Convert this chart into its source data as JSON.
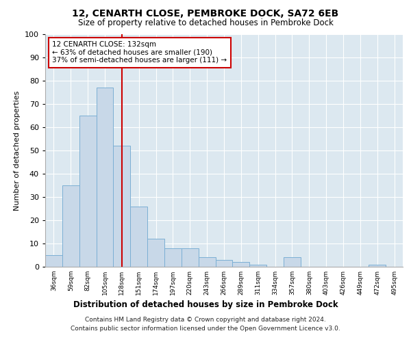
{
  "title1": "12, CENARTH CLOSE, PEMBROKE DOCK, SA72 6EB",
  "title2": "Size of property relative to detached houses in Pembroke Dock",
  "xlabel": "Distribution of detached houses by size in Pembroke Dock",
  "ylabel": "Number of detached properties",
  "footer1": "Contains HM Land Registry data © Crown copyright and database right 2024.",
  "footer2": "Contains public sector information licensed under the Open Government Licence v3.0.",
  "annotation_line1": "12 CENARTH CLOSE: 132sqm",
  "annotation_line2": "← 63% of detached houses are smaller (190)",
  "annotation_line3": "37% of semi-detached houses are larger (111) →",
  "bar_labels": [
    "36sqm",
    "59sqm",
    "82sqm",
    "105sqm",
    "128sqm",
    "151sqm",
    "174sqm",
    "197sqm",
    "220sqm",
    "243sqm",
    "266sqm",
    "289sqm",
    "311sqm",
    "334sqm",
    "357sqm",
    "380sqm",
    "403sqm",
    "426sqm",
    "449sqm",
    "472sqm",
    "495sqm"
  ],
  "bar_values": [
    5,
    35,
    65,
    77,
    52,
    26,
    12,
    8,
    8,
    4,
    3,
    2,
    1,
    0,
    4,
    0,
    0,
    0,
    0,
    1,
    0
  ],
  "bar_color": "#c8d8e8",
  "bar_edge_color": "#7bafd4",
  "vline_x": 4,
  "vline_color": "#cc0000",
  "annotation_box_color": "#cc0000",
  "background_color": "#dce8f0",
  "ylim": [
    0,
    100
  ],
  "yticks": [
    0,
    10,
    20,
    30,
    40,
    50,
    60,
    70,
    80,
    90,
    100
  ]
}
